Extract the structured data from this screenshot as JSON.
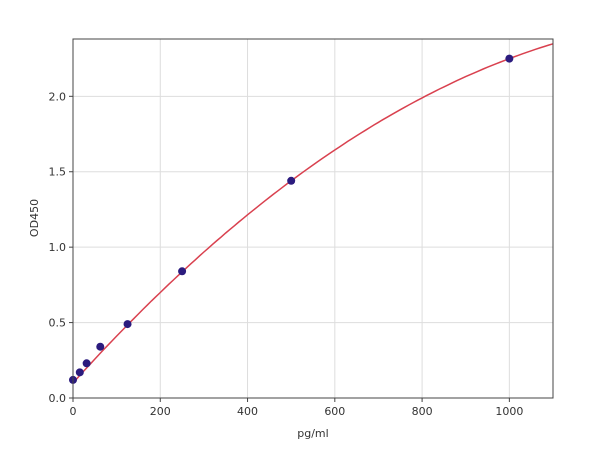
{
  "chart_data": {
    "type": "scatter",
    "title": "",
    "xlabel": "pg/ml",
    "ylabel": "OD450",
    "xlim": [
      0,
      1100
    ],
    "ylim": [
      0,
      2.38
    ],
    "xticks": [
      0,
      200,
      400,
      600,
      800,
      1000
    ],
    "xtick_labels": [
      "0",
      "200",
      "400",
      "600",
      "800",
      "1000"
    ],
    "yticks": [
      0,
      0.5,
      1.0,
      1.5,
      2.0
    ],
    "ytick_labels": [
      "0.0",
      "0.5",
      "1.0",
      "1.5",
      "2.0"
    ],
    "grid": true,
    "series": [
      {
        "kind": "points",
        "x": [
          0,
          15.6,
          31.25,
          62.5,
          125,
          250,
          500,
          1000
        ],
        "y": [
          0.12,
          0.17,
          0.23,
          0.34,
          0.49,
          0.84,
          1.44,
          2.25
        ],
        "color": "#2b1b7e"
      },
      {
        "kind": "fitted-curve",
        "color": "#d9414f"
      }
    ]
  }
}
